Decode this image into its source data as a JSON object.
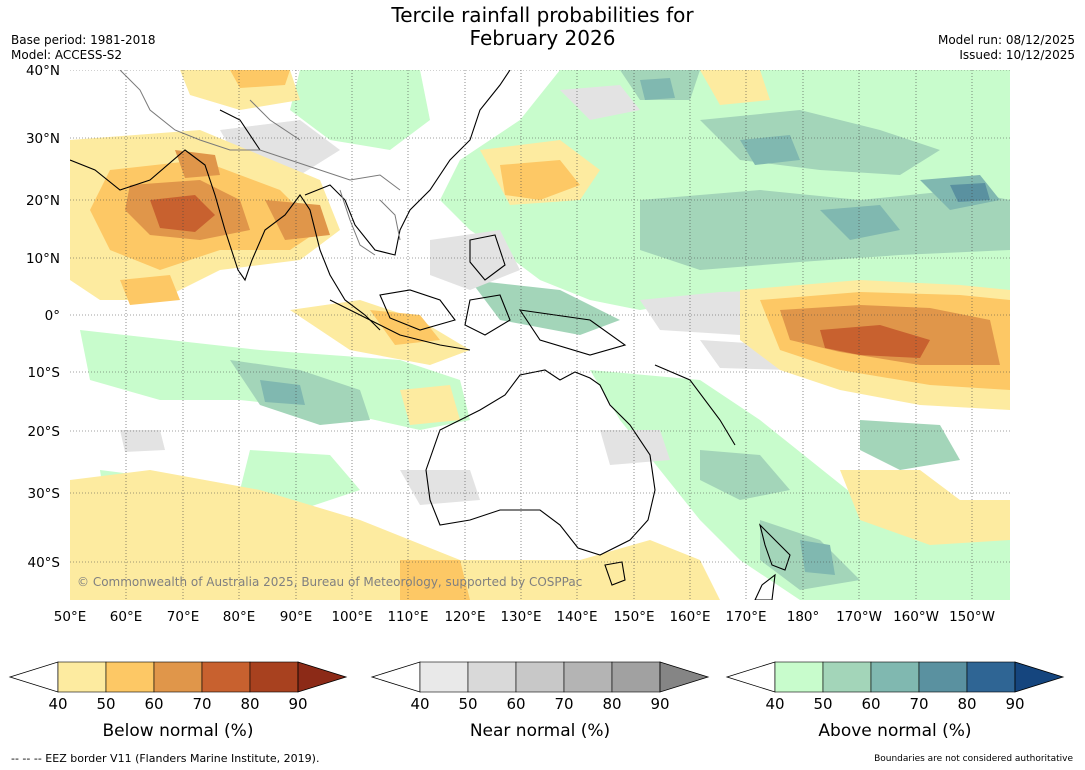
{
  "header": {
    "title_line1": "Tercile rainfall probabilities for",
    "title_line2": "February 2026",
    "base_period": "Base period: 1981-2018",
    "model": "Model: ACCESS-S2",
    "model_run": "Model run: 08/12/2025",
    "issued": "Issued: 10/12/2025"
  },
  "map": {
    "lon_labels": [
      "50°E",
      "60°E",
      "70°E",
      "80°E",
      "90°E",
      "100°E",
      "110°E",
      "120°E",
      "130°E",
      "140°E",
      "150°E",
      "160°E",
      "170°E",
      "180°",
      "170°W",
      "160°W",
      "150°W"
    ],
    "lat_labels": [
      "40°N",
      "30°N",
      "20°N",
      "10°N",
      "0°",
      "10°S",
      "20°S",
      "30°S",
      "40°S"
    ],
    "copyright": "© Commonwealth of Australia 2025, Bureau of Meteorology, supported by COSPPac"
  },
  "colorbars": [
    {
      "title": "Below normal (%)",
      "ticks": [
        "40",
        "50",
        "60",
        "70",
        "80",
        "90"
      ],
      "colors": [
        "#ffffff",
        "#fdeba0",
        "#fdc865",
        "#e0964a",
        "#c8612f",
        "#a8411f",
        "#8c2a17"
      ]
    },
    {
      "title": "Near normal (%)",
      "ticks": [
        "40",
        "50",
        "60",
        "70",
        "80",
        "90"
      ],
      "colors": [
        "#ffffff",
        "#e9e9e9",
        "#d9d9d9",
        "#c8c8c8",
        "#b4b4b4",
        "#a1a1a1",
        "#858585"
      ]
    },
    {
      "title": "Above normal (%)",
      "ticks": [
        "40",
        "50",
        "60",
        "70",
        "80",
        "90"
      ],
      "colors": [
        "#ffffff",
        "#c8fccc",
        "#a3d5b9",
        "#80b8b0",
        "#5a91a0",
        "#2f6594",
        "#15457e"
      ]
    }
  ],
  "footer": {
    "eez_note": "--  --  -- EEZ border V11 (Flanders Marine Institute, 2019).",
    "boundaries_note": "Boundaries are not considered authoritative"
  }
}
